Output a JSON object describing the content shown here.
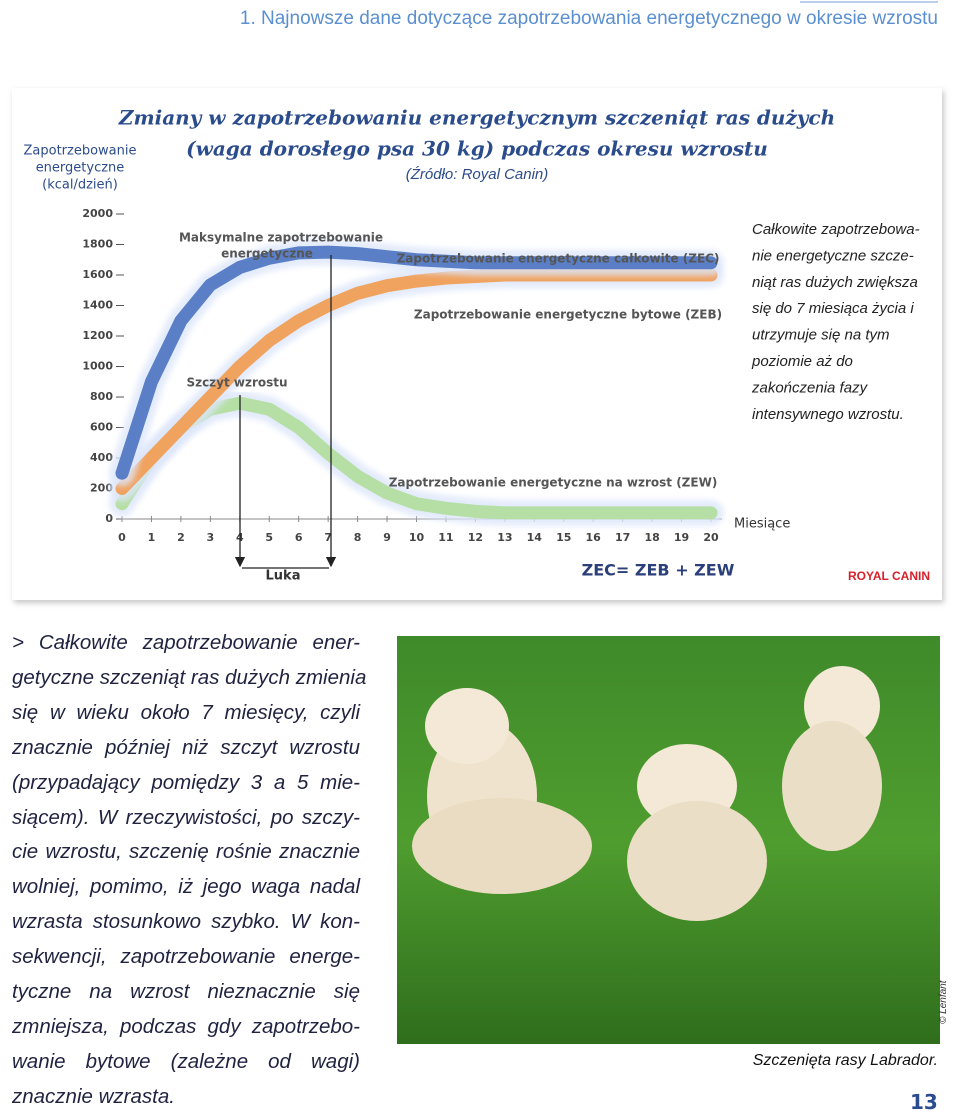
{
  "header": {
    "title": "1. Najnowsze dane dotyczące zapotrzebowania energetycznego w okresie wzrostu"
  },
  "chart_data": {
    "type": "line",
    "title": [
      "Zmiany w zapotrzebowaniu energetycznym szczeniąt ras dużych",
      "(waga dorosłego psa 30 kg) podczas okresu wzrostu"
    ],
    "subtitle": "(Źródło: Royal Canin)",
    "y_label": [
      "Zapotrzebowanie",
      "energetyczne",
      "(kcal/dzień)"
    ],
    "x_label": "Miesiące",
    "x": [
      0,
      1,
      2,
      3,
      4,
      5,
      6,
      7,
      8,
      9,
      10,
      11,
      12,
      13,
      14,
      15,
      16,
      17,
      18,
      19,
      20
    ],
    "xlim": [
      0,
      20
    ],
    "xticks": [
      0,
      1,
      2,
      3,
      4,
      5,
      6,
      7,
      8,
      9,
      10,
      11,
      12,
      13,
      14,
      15,
      16,
      17,
      18,
      19,
      20
    ],
    "ylim": [
      0,
      2000
    ],
    "yticks": [
      0,
      200,
      400,
      600,
      800,
      1000,
      1200,
      1400,
      1600,
      1800,
      2000
    ],
    "series": [
      {
        "name": "Zapotrzebowanie energetyczne całkowite (ZEC)",
        "color": "#5a7fc6",
        "values": [
          300,
          900,
          1300,
          1535,
          1650,
          1710,
          1745,
          1750,
          1740,
          1720,
          1700,
          1690,
          1680,
          1680,
          1680,
          1680,
          1680,
          1680,
          1680,
          1680,
          1680
        ]
      },
      {
        "name": "Zapotrzebowanie energetyczne bytowe (ZEB)",
        "color": "#f0a25f",
        "values": [
          200,
          400,
          600,
          800,
          1000,
          1170,
          1300,
          1400,
          1480,
          1530,
          1560,
          1580,
          1590,
          1600,
          1600,
          1600,
          1600,
          1600,
          1600,
          1600,
          1600
        ]
      },
      {
        "name": "Zapotrzebowanie energetyczne na wzrost (ZEW)",
        "color": "#b5dfa5",
        "values": [
          100,
          400,
          600,
          720,
          760,
          720,
          600,
          430,
          280,
          170,
          100,
          70,
          50,
          40,
          40,
          40,
          40,
          40,
          40,
          40,
          40
        ]
      }
    ],
    "annotations": {
      "max_demand": [
        "Maksymalne zapotrzebowanie",
        "energetyczne"
      ],
      "growth_peak": "Szczyt wzrostu",
      "gap": "Luka",
      "formula": "ZEC= ZEB + ZEW",
      "logo": "ROYAL CANIN"
    }
  },
  "side_note": [
    "Całkowite zapotrzebowa-",
    "nie energetyczne szcze-",
    "niąt ras dużych zwiększa",
    "się do 7 miesiąca życia i",
    "utrzymuje się na tym",
    "poziomie aż do",
    "zakończenia fazy",
    "intensywnego wzrostu."
  ],
  "body": [
    "> Całkowite zapotrzebowanie ener-",
    "getyczne szczeniąt ras dużych zmienia",
    "się w wieku około 7 miesięcy, czyli",
    "znacznie później niż szczyt wzrostu",
    "(przypadający pomiędzy 3 a 5 mie-",
    "siącem). W rzeczywistości, po szczy-",
    "cie wzrostu, szczenię rośnie znacznie",
    "wolniej, pomimo, iż jego waga nadal",
    "wzrasta stosunkowo szybko. W kon-",
    "sekwencji, zapotrzebowanie energe-",
    "tyczne na wzrost nieznacznie się",
    "zmniejsza, podczas gdy zapotrzebo-",
    "wanie bytowe (zależne od wagi)",
    "znacznie wzrasta."
  ],
  "photo": {
    "caption": "Szczenięta rasy Labrador.",
    "credit": "© Lenfant"
  },
  "page_number": "13"
}
